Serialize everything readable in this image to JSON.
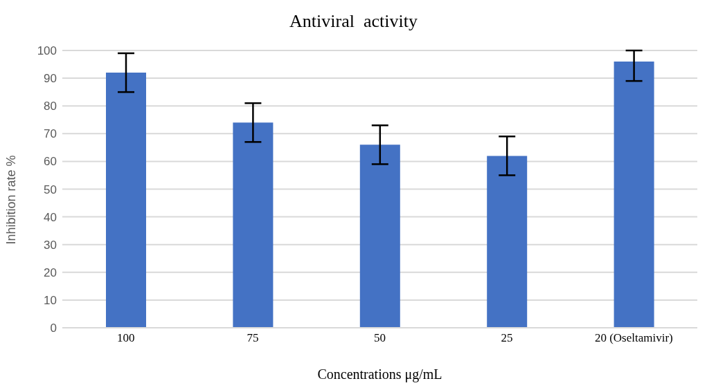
{
  "chart_data": {
    "type": "bar",
    "title": "Antiviral  activity",
    "xlabel": "Concentrations μg/mL",
    "ylabel": "Inhibition rate %",
    "categories": [
      "100",
      "75",
      "50",
      "25",
      "20 (Oseltamivir)"
    ],
    "values": [
      92,
      74,
      66,
      62,
      96
    ],
    "errors": [
      7,
      7,
      7,
      7,
      [
        89,
        100
      ]
    ],
    "color": "#4472c4",
    "ylim": [
      0,
      100
    ],
    "yticks": [
      0,
      10,
      20,
      30,
      40,
      50,
      60,
      70,
      80,
      90,
      100
    ],
    "grid": "y"
  }
}
